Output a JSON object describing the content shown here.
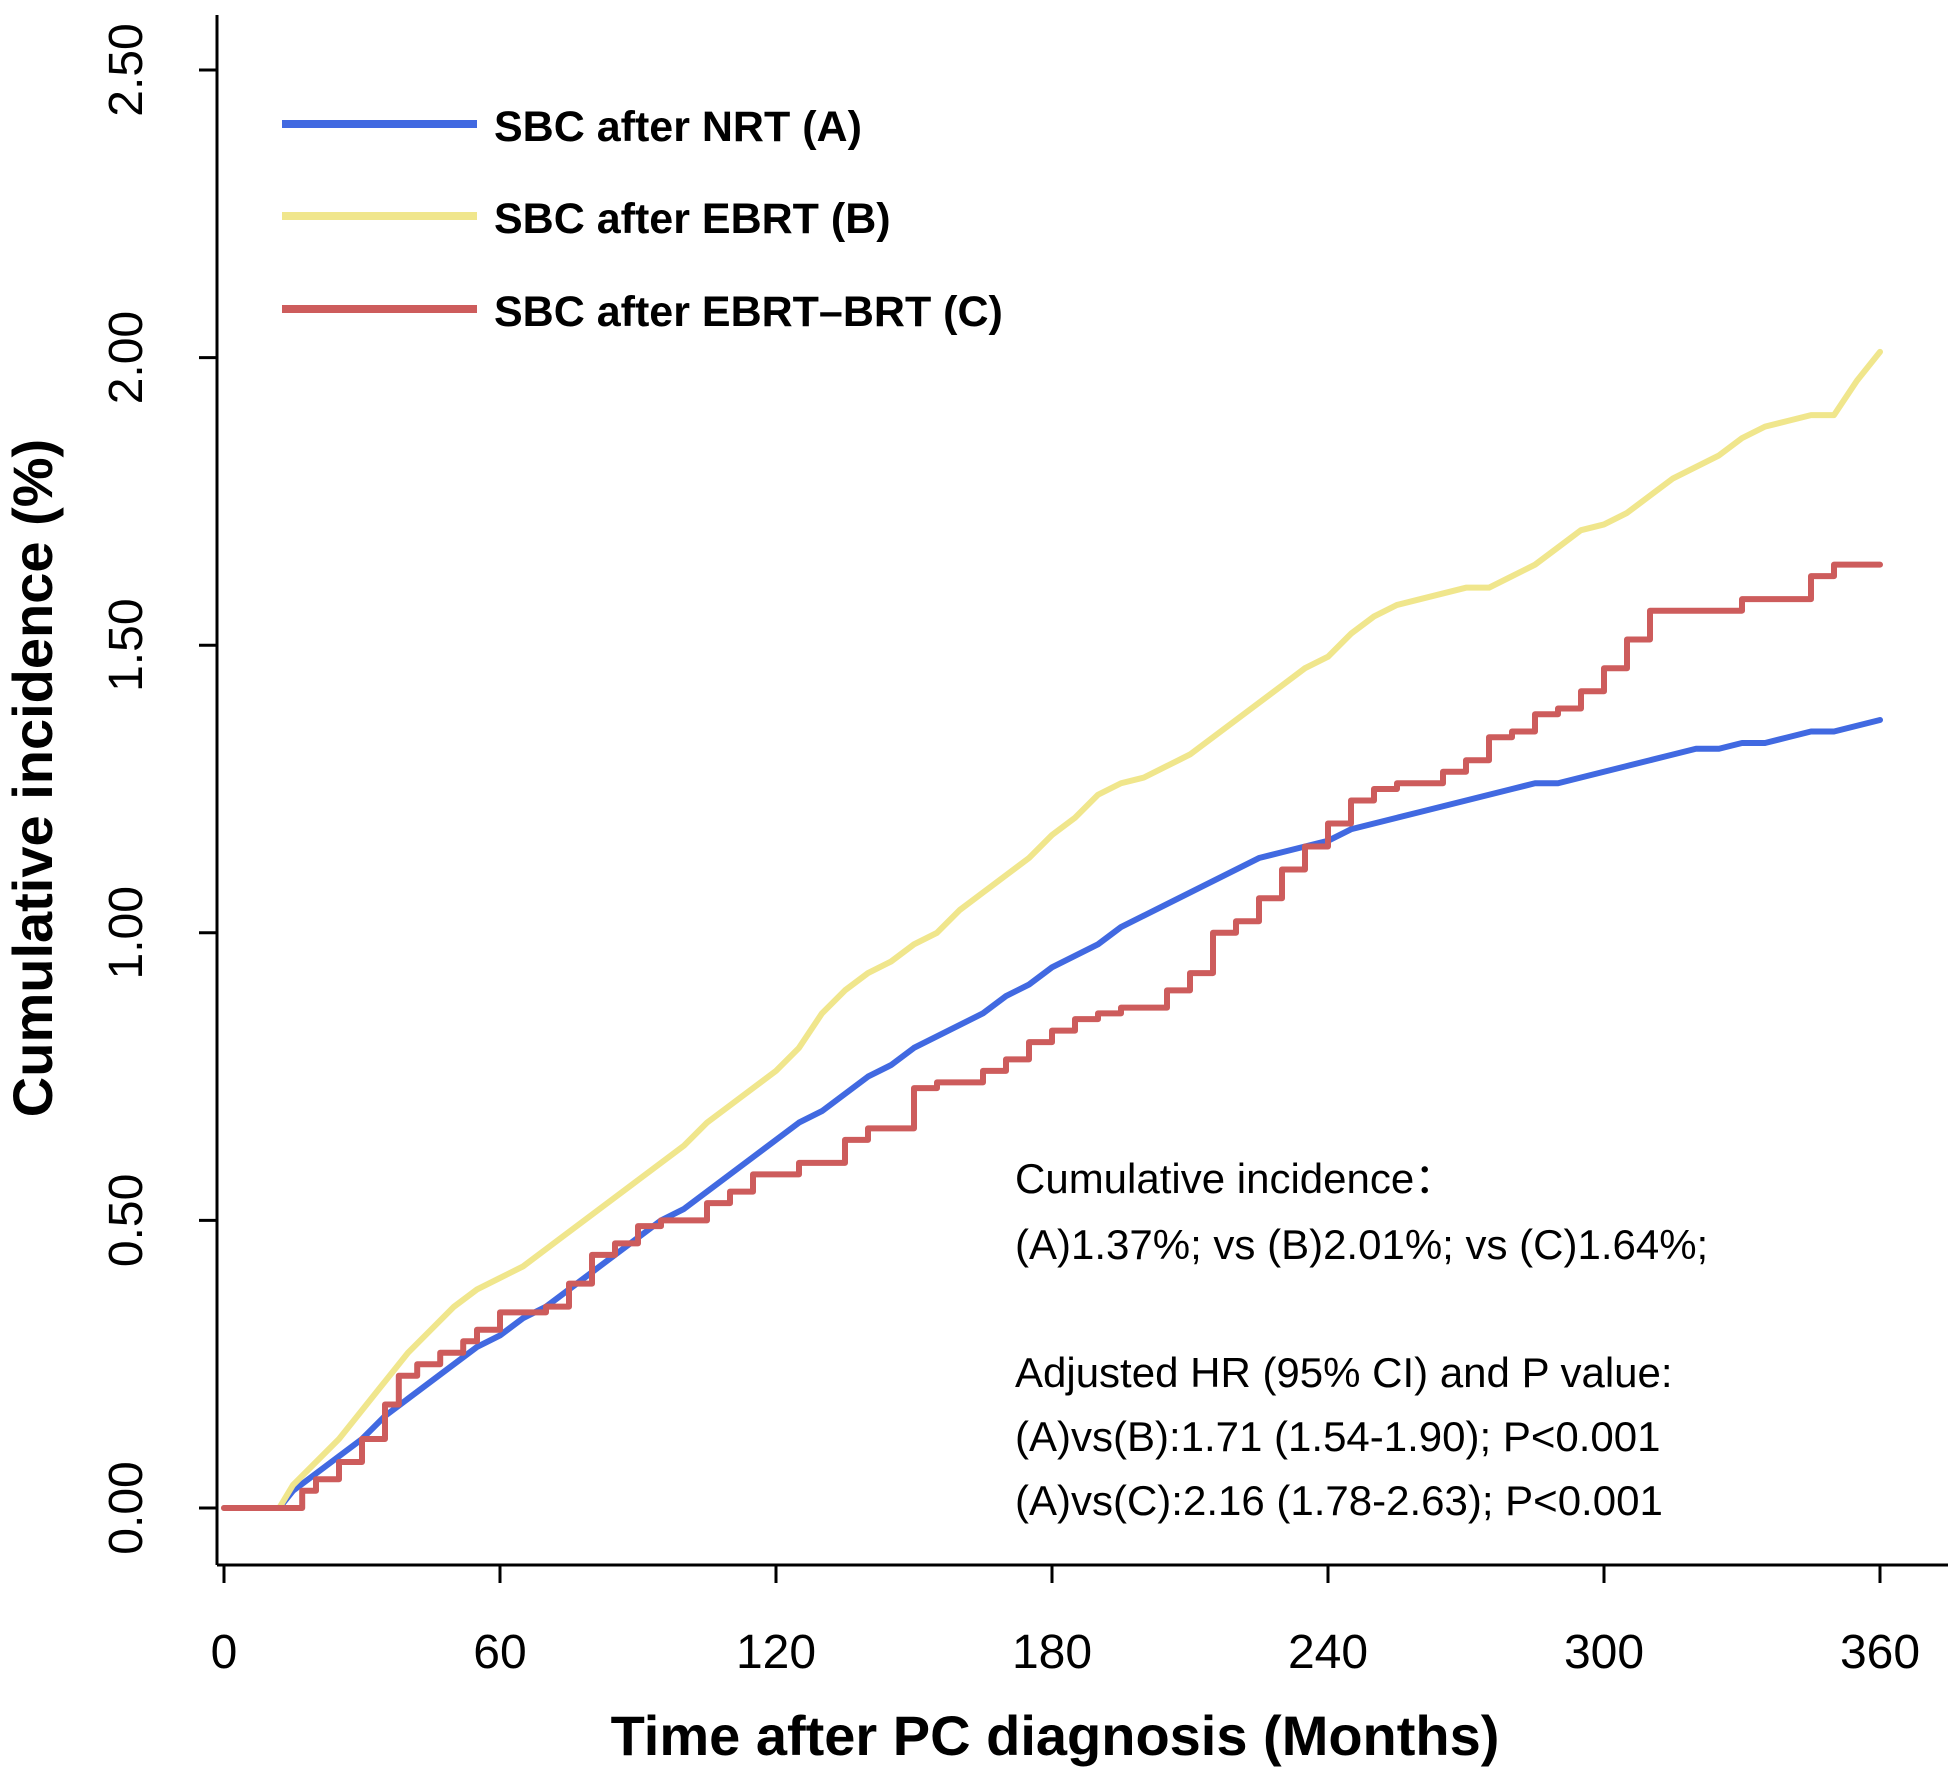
{
  "chart_data": {
    "type": "line",
    "title": "",
    "xlabel": "Time after PC diagnosis (Months)",
    "ylabel": "Cumulative incidence (%)",
    "xlim": [
      0,
      360
    ],
    "ylim": [
      0,
      2.5
    ],
    "xticks": [
      0,
      60,
      120,
      180,
      240,
      300,
      360
    ],
    "xtick_labels": [
      "0",
      "60",
      "120",
      "180",
      "240",
      "300",
      "360"
    ],
    "yticks": [
      0,
      0.5,
      1.0,
      1.5,
      2.0,
      2.5
    ],
    "ytick_labels": [
      "0.00",
      "0.50",
      "1.00",
      "1.50",
      "2.00",
      "2.50"
    ],
    "grid": false,
    "legend_position": "top-left",
    "series": [
      {
        "name": "SBC after NRT (A)",
        "color": "#4169E1",
        "x": [
          0,
          12,
          15,
          20,
          25,
          30,
          35,
          40,
          45,
          50,
          55,
          60,
          65,
          70,
          75,
          80,
          85,
          90,
          95,
          100,
          105,
          110,
          115,
          120,
          125,
          130,
          135,
          140,
          145,
          150,
          155,
          160,
          165,
          170,
          175,
          180,
          185,
          190,
          195,
          200,
          205,
          210,
          215,
          220,
          225,
          230,
          235,
          240,
          245,
          250,
          255,
          260,
          265,
          270,
          275,
          280,
          285,
          290,
          295,
          300,
          305,
          310,
          315,
          320,
          325,
          330,
          335,
          340,
          345,
          350,
          355,
          360
        ],
        "y": [
          0,
          0,
          0.03,
          0.06,
          0.09,
          0.12,
          0.16,
          0.19,
          0.22,
          0.25,
          0.28,
          0.3,
          0.33,
          0.35,
          0.38,
          0.41,
          0.44,
          0.47,
          0.5,
          0.52,
          0.55,
          0.58,
          0.61,
          0.64,
          0.67,
          0.69,
          0.72,
          0.75,
          0.77,
          0.8,
          0.82,
          0.84,
          0.86,
          0.89,
          0.91,
          0.94,
          0.96,
          0.98,
          1.01,
          1.03,
          1.05,
          1.07,
          1.09,
          1.11,
          1.13,
          1.14,
          1.15,
          1.16,
          1.18,
          1.19,
          1.2,
          1.21,
          1.22,
          1.23,
          1.24,
          1.25,
          1.26,
          1.26,
          1.27,
          1.28,
          1.29,
          1.3,
          1.31,
          1.32,
          1.32,
          1.33,
          1.33,
          1.34,
          1.35,
          1.35,
          1.36,
          1.37
        ]
      },
      {
        "name": "SBC after EBRT (B)",
        "color": "#F0E68C",
        "x": [
          0,
          12,
          15,
          20,
          25,
          30,
          35,
          40,
          45,
          50,
          55,
          60,
          65,
          70,
          75,
          80,
          85,
          90,
          95,
          100,
          105,
          110,
          115,
          120,
          125,
          130,
          135,
          140,
          145,
          150,
          155,
          160,
          165,
          170,
          175,
          180,
          185,
          190,
          195,
          200,
          205,
          210,
          215,
          220,
          225,
          230,
          235,
          240,
          245,
          250,
          255,
          260,
          265,
          270,
          275,
          280,
          285,
          290,
          295,
          300,
          305,
          310,
          315,
          320,
          325,
          330,
          335,
          340,
          345,
          350,
          355,
          360
        ],
        "y": [
          0,
          0,
          0.04,
          0.08,
          0.12,
          0.17,
          0.22,
          0.27,
          0.31,
          0.35,
          0.38,
          0.4,
          0.42,
          0.45,
          0.48,
          0.51,
          0.54,
          0.57,
          0.6,
          0.63,
          0.67,
          0.7,
          0.73,
          0.76,
          0.8,
          0.86,
          0.9,
          0.93,
          0.95,
          0.98,
          1.0,
          1.04,
          1.07,
          1.1,
          1.13,
          1.17,
          1.2,
          1.24,
          1.26,
          1.27,
          1.29,
          1.31,
          1.34,
          1.37,
          1.4,
          1.43,
          1.46,
          1.48,
          1.52,
          1.55,
          1.57,
          1.58,
          1.59,
          1.6,
          1.6,
          1.62,
          1.64,
          1.67,
          1.7,
          1.71,
          1.73,
          1.76,
          1.79,
          1.81,
          1.83,
          1.86,
          1.88,
          1.89,
          1.9,
          1.9,
          1.96,
          2.01
        ]
      },
      {
        "name": "SBC after EBRT–BRT (C)",
        "color": "#CD5C5C",
        "x": [
          0,
          13,
          17,
          20,
          25,
          30,
          35,
          38,
          42,
          47,
          52,
          55,
          60,
          65,
          70,
          75,
          80,
          85,
          90,
          95,
          100,
          105,
          110,
          115,
          120,
          125,
          130,
          135,
          140,
          145,
          150,
          155,
          160,
          165,
          170,
          175,
          180,
          185,
          190,
          195,
          200,
          205,
          210,
          215,
          220,
          225,
          230,
          235,
          240,
          245,
          250,
          255,
          260,
          265,
          270,
          275,
          280,
          285,
          290,
          295,
          300,
          305,
          310,
          315,
          320,
          325,
          330,
          335,
          340,
          345,
          350,
          355,
          360
        ],
        "y": [
          0,
          0,
          0.03,
          0.05,
          0.08,
          0.12,
          0.18,
          0.23,
          0.25,
          0.27,
          0.29,
          0.31,
          0.34,
          0.34,
          0.35,
          0.39,
          0.44,
          0.46,
          0.49,
          0.5,
          0.5,
          0.53,
          0.55,
          0.58,
          0.58,
          0.6,
          0.6,
          0.64,
          0.66,
          0.66,
          0.73,
          0.74,
          0.74,
          0.76,
          0.78,
          0.81,
          0.83,
          0.85,
          0.86,
          0.87,
          0.87,
          0.9,
          0.93,
          1.0,
          1.02,
          1.06,
          1.11,
          1.15,
          1.19,
          1.23,
          1.25,
          1.26,
          1.26,
          1.28,
          1.3,
          1.34,
          1.35,
          1.38,
          1.39,
          1.42,
          1.46,
          1.51,
          1.56,
          1.56,
          1.56,
          1.56,
          1.58,
          1.58,
          1.58,
          1.62,
          1.64,
          1.64,
          1.64
        ]
      }
    ],
    "annotations": [
      "Cumulative incidence：",
      "(A)1.37%; vs (B)2.01%; vs (C)1.64%;",
      "Adjusted HR (95% CI) and P value:",
      "(A)vs(B):1.71 (1.54-1.90); P<0.001",
      "(A)vs(C):2.16 (1.78-2.63); P<0.001"
    ]
  }
}
